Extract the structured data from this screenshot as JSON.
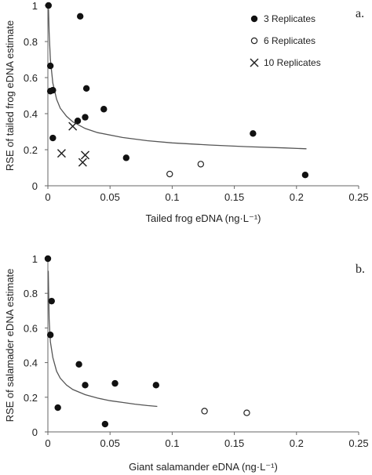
{
  "chart_data": [
    {
      "type": "scatter",
      "panel_label": "a.",
      "xlabel": "Tailed frog eDNA (ng·L⁻¹)",
      "ylabel": "RSE of tailed frog eDNA estimate",
      "xlim": [
        0,
        0.25
      ],
      "ylim": [
        0,
        1
      ],
      "xticks": [
        "0",
        "0.05",
        "0.1",
        "0.15",
        "0.2",
        "0.25"
      ],
      "yticks": [
        "0",
        "0.2",
        "0.4",
        "0.6",
        "0.8",
        "1"
      ],
      "legend_position": "top-right",
      "series": [
        {
          "name": "3 Replicates",
          "marker": "filled-circle",
          "points": [
            [
              0.0005,
              1.0
            ],
            [
              0.026,
              0.94
            ],
            [
              0.002,
              0.665
            ],
            [
              0.002,
              0.525
            ],
            [
              0.004,
              0.53
            ],
            [
              0.031,
              0.54
            ],
            [
              0.045,
              0.425
            ],
            [
              0.03,
              0.38
            ],
            [
              0.024,
              0.36
            ],
            [
              0.004,
              0.265
            ],
            [
              0.063,
              0.155
            ],
            [
              0.165,
              0.29
            ],
            [
              0.207,
              0.06
            ]
          ]
        },
        {
          "name": "6 Replicates",
          "marker": "open-circle",
          "points": [
            [
              0.098,
              0.065
            ],
            [
              0.123,
              0.12
            ]
          ]
        },
        {
          "name": "10 Replicates",
          "marker": "x",
          "points": [
            [
              0.02,
              0.33
            ],
            [
              0.011,
              0.18
            ],
            [
              0.03,
              0.17
            ],
            [
              0.028,
              0.13
            ]
          ]
        }
      ],
      "fit_curve": {
        "points": [
          [
            0.0005,
            0.98
          ],
          [
            0.001,
            0.85
          ],
          [
            0.002,
            0.7
          ],
          [
            0.004,
            0.57
          ],
          [
            0.007,
            0.48
          ],
          [
            0.01,
            0.43
          ],
          [
            0.015,
            0.385
          ],
          [
            0.02,
            0.355
          ],
          [
            0.03,
            0.318
          ],
          [
            0.04,
            0.295
          ],
          [
            0.06,
            0.268
          ],
          [
            0.08,
            0.25
          ],
          [
            0.1,
            0.238
          ],
          [
            0.13,
            0.226
          ],
          [
            0.16,
            0.217
          ],
          [
            0.19,
            0.21
          ],
          [
            0.208,
            0.205
          ]
        ]
      }
    },
    {
      "type": "scatter",
      "panel_label": "b.",
      "xlabel": "Giant salamander eDNA (ng·L⁻¹)",
      "ylabel": "RSE of salamader eDNA estimate",
      "xlim": [
        0,
        0.25
      ],
      "ylim": [
        0,
        1
      ],
      "xticks": [
        "0",
        "0.05",
        "0.1",
        "0.15",
        "0.2",
        "0.25"
      ],
      "yticks": [
        "0",
        "0.2",
        "0.4",
        "0.6",
        "0.8",
        "1"
      ],
      "series": [
        {
          "name": "3 Replicates",
          "marker": "filled-circle",
          "points": [
            [
              0.0,
              1.0
            ],
            [
              0.003,
              0.755
            ],
            [
              0.002,
              0.56
            ],
            [
              0.025,
              0.39
            ],
            [
              0.03,
              0.27
            ],
            [
              0.054,
              0.28
            ],
            [
              0.087,
              0.27
            ],
            [
              0.008,
              0.14
            ],
            [
              0.046,
              0.045
            ]
          ]
        },
        {
          "name": "6 Replicates",
          "marker": "open-circle",
          "points": [
            [
              0.126,
              0.12
            ],
            [
              0.16,
              0.11
            ]
          ]
        }
      ],
      "fit_curve": {
        "points": [
          [
            0.0003,
            0.93
          ],
          [
            0.001,
            0.65
          ],
          [
            0.002,
            0.52
          ],
          [
            0.004,
            0.43
          ],
          [
            0.007,
            0.35
          ],
          [
            0.01,
            0.31
          ],
          [
            0.015,
            0.27
          ],
          [
            0.02,
            0.245
          ],
          [
            0.03,
            0.215
          ],
          [
            0.04,
            0.195
          ],
          [
            0.05,
            0.18
          ],
          [
            0.06,
            0.17
          ],
          [
            0.07,
            0.16
          ],
          [
            0.08,
            0.152
          ],
          [
            0.088,
            0.147
          ]
        ]
      }
    }
  ]
}
